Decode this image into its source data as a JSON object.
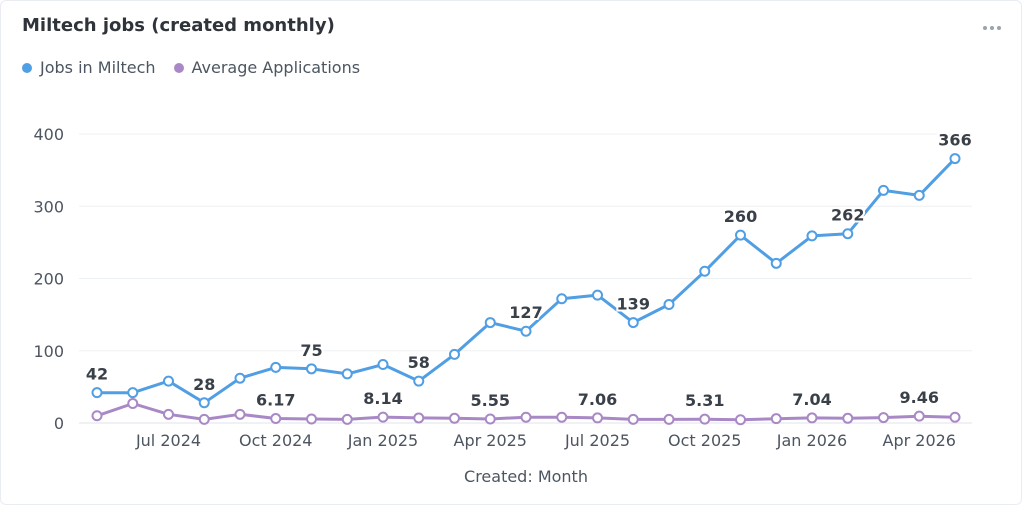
{
  "card": {
    "title": "Miltech jobs (created monthly)",
    "more_icon": "more-horizontal-icon"
  },
  "legend": [
    {
      "label": "Jobs in Miltech",
      "color": "#509ee3"
    },
    {
      "label": "Average Applications",
      "color": "#a989c5"
    }
  ],
  "chart_data": {
    "type": "line",
    "xlabel": "Created: Month",
    "ylabel": "",
    "ylim": [
      0,
      400
    ],
    "y_ticks": [
      0,
      100,
      200,
      300,
      400
    ],
    "x": [
      "2024-05",
      "2024-06",
      "2024-07",
      "2024-08",
      "2024-09",
      "2024-10",
      "2024-11",
      "2024-12",
      "2025-01",
      "2025-02",
      "2025-03",
      "2025-04",
      "2025-05",
      "2025-06",
      "2025-07",
      "2025-08",
      "2025-09",
      "2025-10",
      "2025-11",
      "2025-12",
      "2026-01",
      "2026-02",
      "2026-03",
      "2026-04",
      "2026-05"
    ],
    "x_tick_labels": [
      {
        "x": "2024-07",
        "label": "Jul 2024"
      },
      {
        "x": "2024-10",
        "label": "Oct 2024"
      },
      {
        "x": "2025-01",
        "label": "Jan 2025"
      },
      {
        "x": "2025-04",
        "label": "Apr 2025"
      },
      {
        "x": "2025-07",
        "label": "Jul 2025"
      },
      {
        "x": "2025-10",
        "label": "Oct 2025"
      },
      {
        "x": "2026-01",
        "label": "Jan 2026"
      },
      {
        "x": "2026-04",
        "label": "Apr 2026"
      }
    ],
    "grid": true,
    "legend_position": "top-left",
    "series": [
      {
        "name": "Jobs in Miltech",
        "color": "#509ee3",
        "values": [
          42,
          42,
          58,
          28,
          62,
          77,
          75,
          68,
          81,
          58,
          95,
          139,
          127,
          172,
          177,
          139,
          164,
          210,
          260,
          221,
          259,
          262,
          322,
          315,
          366
        ],
        "data_labels": [
          {
            "index": 0,
            "text": "42"
          },
          {
            "index": 3,
            "text": "28"
          },
          {
            "index": 6,
            "text": "75"
          },
          {
            "index": 9,
            "text": "58"
          },
          {
            "index": 12,
            "text": "127"
          },
          {
            "index": 15,
            "text": "139"
          },
          {
            "index": 18,
            "text": "260"
          },
          {
            "index": 21,
            "text": "262"
          },
          {
            "index": 24,
            "text": "366"
          }
        ]
      },
      {
        "name": "Average Applications",
        "color": "#a989c5",
        "values": [
          10,
          27,
          12,
          5,
          12,
          6.17,
          5.5,
          5,
          8.14,
          7,
          6.5,
          5.55,
          8,
          8,
          7.06,
          5,
          5,
          5.31,
          4.5,
          6,
          7.04,
          6.5,
          7.5,
          9.46,
          8
        ],
        "data_labels": [
          {
            "index": 5,
            "text": "6.17"
          },
          {
            "index": 8,
            "text": "8.14"
          },
          {
            "index": 11,
            "text": "5.55"
          },
          {
            "index": 14,
            "text": "7.06"
          },
          {
            "index": 17,
            "text": "5.31"
          },
          {
            "index": 20,
            "text": "7.04"
          },
          {
            "index": 23,
            "text": "9.46"
          }
        ]
      }
    ]
  }
}
